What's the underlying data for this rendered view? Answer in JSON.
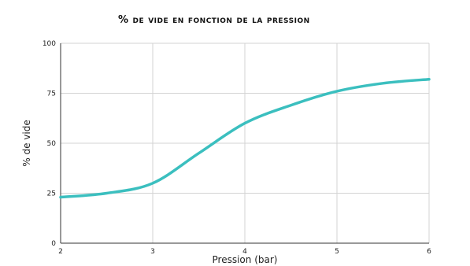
{
  "chart_data": {
    "type": "line",
    "title": "% de vide en fonction de la pression",
    "xlabel": "Pression (bar)",
    "ylabel": "% de vide",
    "xlim": [
      2,
      6
    ],
    "ylim": [
      0,
      100
    ],
    "x_ticks": [
      2,
      3,
      4,
      5,
      6
    ],
    "y_ticks": [
      0,
      25,
      50,
      75,
      100
    ],
    "grid": true,
    "legend": "none",
    "series": [
      {
        "color": "#3bbfbf",
        "x": [
          2,
          2.5,
          3,
          3.5,
          4,
          4.5,
          5,
          5.5,
          6
        ],
        "y": [
          23,
          25,
          30,
          45,
          60,
          69,
          76,
          80,
          82
        ]
      }
    ]
  }
}
